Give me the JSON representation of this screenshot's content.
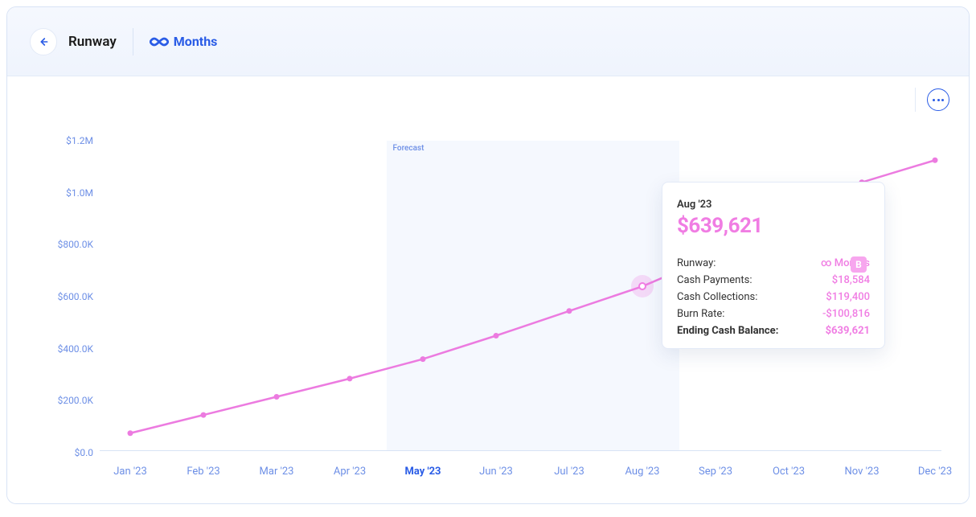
{
  "header": {
    "title": "Runway",
    "months_label": "Months",
    "months_icon": "infinity"
  },
  "chart": {
    "type": "line",
    "line_color": "#ec7be0",
    "line_width": 2.5,
    "marker_radius": 3.5,
    "marker_fill": "#ec7be0",
    "background_color": "#ffffff",
    "axis_color": "#d8e3f5",
    "label_color": "#6d8fe6",
    "current_label_color": "#2a5ce6",
    "forecast_band_color": "#f0f4fd",
    "forecast_label": "Forecast",
    "y": {
      "min": 0,
      "max": 1200000,
      "ticks": [
        {
          "v": 0,
          "label": "$0.0"
        },
        {
          "v": 200000,
          "label": "$200.0K"
        },
        {
          "v": 400000,
          "label": "$400.0K"
        },
        {
          "v": 600000,
          "label": "$600.0K"
        },
        {
          "v": 800000,
          "label": "$800.0K"
        },
        {
          "v": 1000000,
          "label": "$1.0M"
        },
        {
          "v": 1200000,
          "label": "$1.2M"
        }
      ]
    },
    "x_labels": [
      "Jan '23",
      "Feb '23",
      "Mar '23",
      "Apr '23",
      "May '23",
      "Jun '23",
      "Jul '23",
      "Aug '23",
      "Sep '23",
      "Oct '23",
      "Nov '23",
      "Dec '23"
    ],
    "current_index": 4,
    "forecast_start_index": 4,
    "forecast_end_index": 7,
    "highlight_index": 7,
    "values": [
      75000,
      145000,
      215000,
      285000,
      360000,
      450000,
      545000,
      639621,
      760000,
      900000,
      1040000,
      1125000
    ]
  },
  "tooltip": {
    "month": "Aug '23",
    "value": "$639,621",
    "badge": "B",
    "rows": [
      {
        "k": "Runway:",
        "v": "∞ Months",
        "bold": false
      },
      {
        "k": "Cash Payments:",
        "v": "$18,584",
        "bold": false
      },
      {
        "k": "Cash Collections:",
        "v": "$119,400",
        "bold": false
      },
      {
        "k": "Burn Rate:",
        "v": "-$100,816",
        "bold": false
      },
      {
        "k": "Ending Cash Balance:",
        "v": "$639,621",
        "bold": true
      }
    ]
  },
  "colors": {
    "primary": "#2a5ce6",
    "accent": "#ec7be0"
  }
}
